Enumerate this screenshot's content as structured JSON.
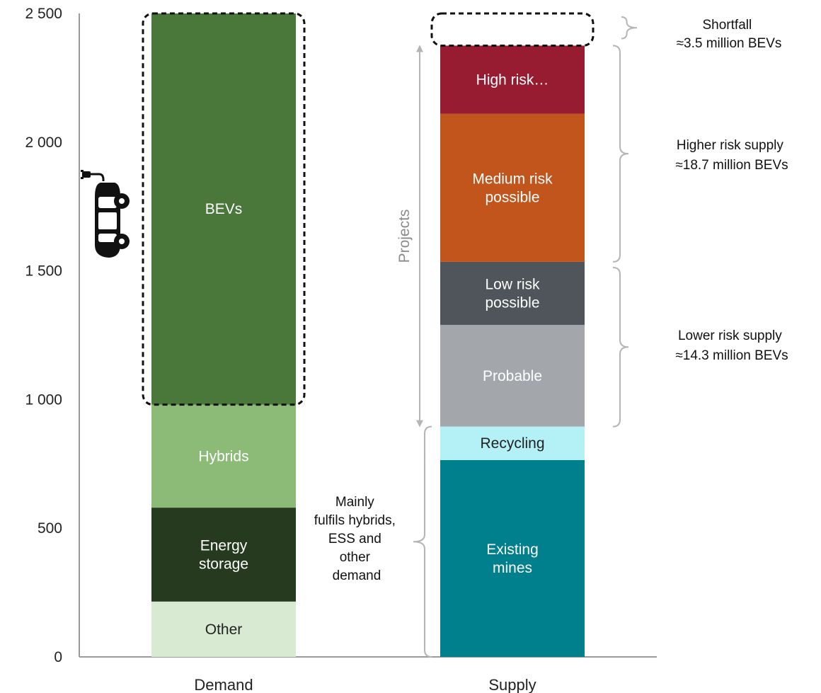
{
  "chart_data": {
    "type": "bar",
    "stacked": true,
    "categories": [
      "Demand",
      "Supply"
    ],
    "ylim": [
      0,
      2500
    ],
    "yticks": [
      0,
      500,
      1000,
      1500,
      2000,
      2500
    ],
    "ytick_labels": [
      "0",
      "500",
      "1 000",
      "1 500",
      "2 000",
      "2 500"
    ],
    "grid": false,
    "series": [
      {
        "name": "Other",
        "category": "Demand",
        "base": 0,
        "value": 215,
        "color": "#d9ead3",
        "label_color": "#222222",
        "lines": [
          "Other"
        ]
      },
      {
        "name": "Energy storage",
        "category": "Demand",
        "base": 215,
        "value": 365,
        "color": "#253a1f",
        "label_color": "#ffffff",
        "lines": [
          "Energy",
          "storage"
        ]
      },
      {
        "name": "Hybrids",
        "category": "Demand",
        "base": 580,
        "value": 400,
        "color": "#8cbb78",
        "label_color": "#ffffff",
        "lines": [
          "Hybrids"
        ]
      },
      {
        "name": "BEVs",
        "category": "Demand",
        "base": 980,
        "value": 1520,
        "color": "#4a783b",
        "label_color": "#ffffff",
        "lines": [
          "BEVs"
        ]
      },
      {
        "name": "Existing mines",
        "category": "Supply",
        "base": 0,
        "value": 765,
        "color": "#007f8c",
        "label_color": "#ffffff",
        "lines": [
          "Existing",
          "mines"
        ]
      },
      {
        "name": "Recycling",
        "category": "Supply",
        "base": 765,
        "value": 130,
        "color": "#b3f1f7",
        "label_color": "#222222",
        "lines": [
          "Recycling"
        ]
      },
      {
        "name": "Probable",
        "category": "Supply",
        "base": 895,
        "value": 395,
        "color": "#a3a7ab",
        "label_color": "#ffffff",
        "lines": [
          "Probable"
        ]
      },
      {
        "name": "Low risk possible",
        "category": "Supply",
        "base": 1290,
        "value": 245,
        "color": "#4f555a",
        "label_color": "#ffffff",
        "lines": [
          "Low risk",
          "possible"
        ]
      },
      {
        "name": "Medium risk possible",
        "category": "Supply",
        "base": 1535,
        "value": 575,
        "color": "#c2551c",
        "label_color": "#ffffff",
        "lines": [
          "Medium risk",
          "possible"
        ]
      },
      {
        "name": "High risk…",
        "category": "Supply",
        "base": 2110,
        "value": 265,
        "color": "#981c31",
        "label_color": "#ffffff",
        "lines": [
          "High risk…"
        ]
      }
    ],
    "dashed_boxes": [
      {
        "name": "bev-demand-box",
        "category": "Demand",
        "from": 980,
        "to": 2500
      },
      {
        "name": "shortfall-box",
        "category": "Supply",
        "from": 2375,
        "to": 2500
      }
    ],
    "annotations": {
      "shortfall": {
        "lines": [
          "Shortfall",
          "≈3.5 million BEVs"
        ],
        "from": 2375,
        "to": 2500
      },
      "higher_risk": {
        "lines": [
          "Higher risk supply",
          "≈18.7 million BEVs"
        ],
        "from": 1535,
        "to": 2375
      },
      "lower_risk": {
        "lines": [
          "Lower risk supply",
          "≈14.3 million BEVs"
        ],
        "from": 895,
        "to": 1535
      },
      "projects": {
        "label": "Projects",
        "from": 895,
        "to": 2375
      },
      "mainly": {
        "lines": [
          "Mainly",
          "fulfils hybrids,",
          "ESS and",
          "other",
          "demand"
        ],
        "from": 0,
        "to": 895
      }
    },
    "icon": "electric-car-icon"
  }
}
